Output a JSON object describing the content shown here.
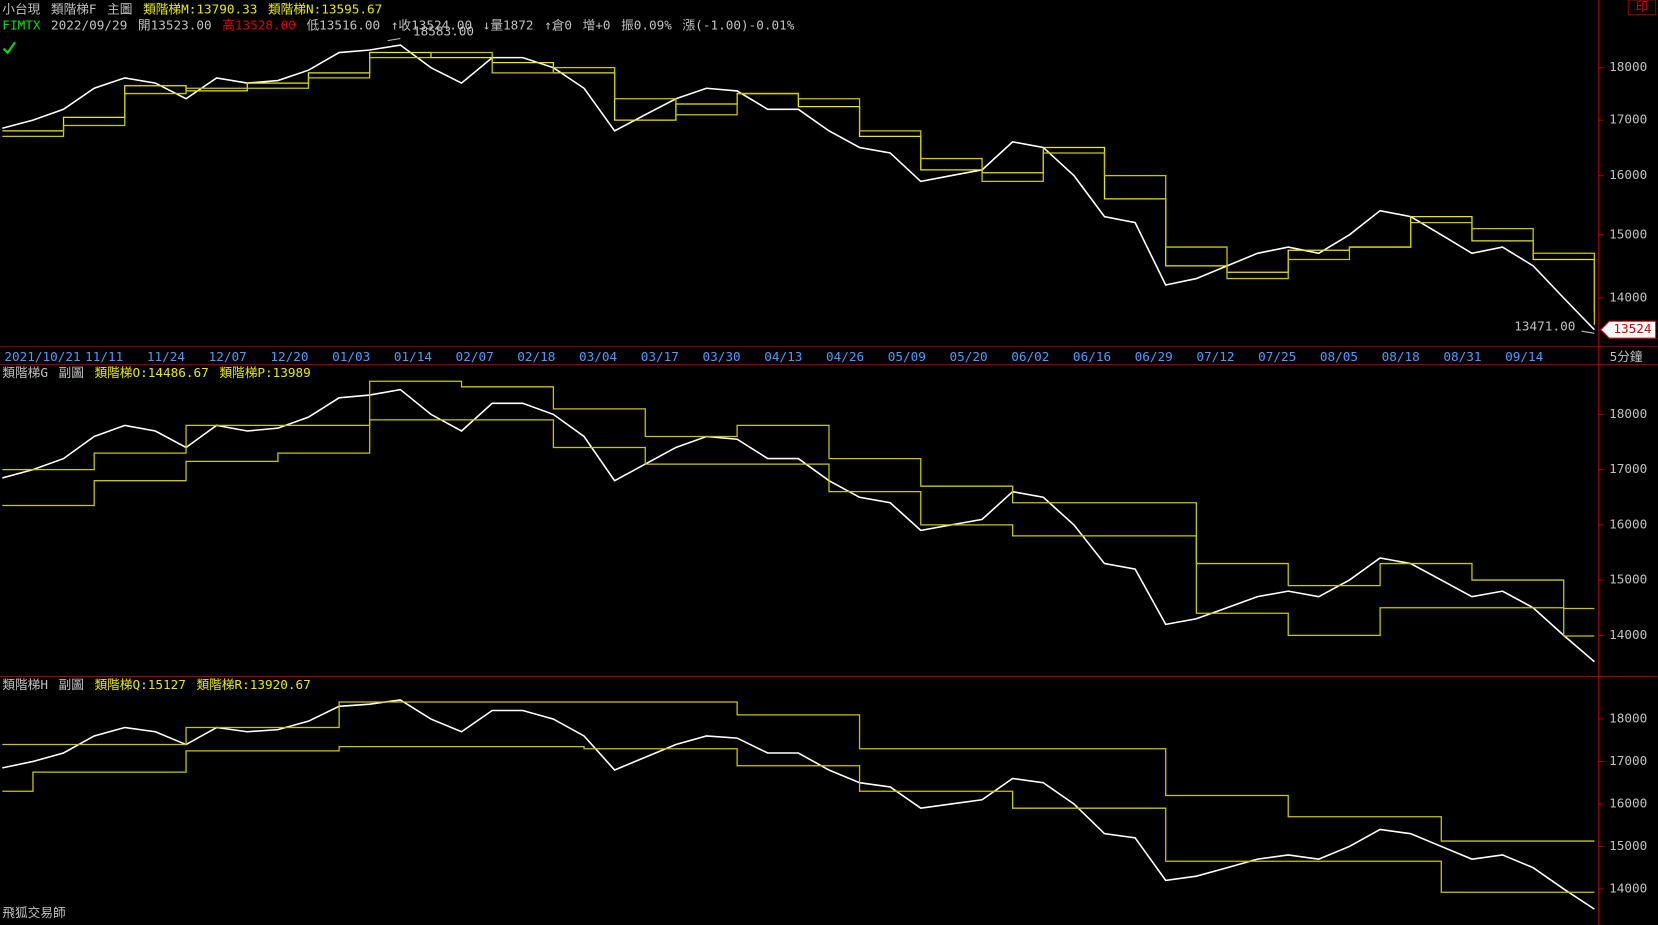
{
  "header": {
    "line1": [
      {
        "text": "小台現",
        "color": "#c0c0c0"
      },
      {
        "text": "類階梯F",
        "color": "#c0c0c0"
      },
      {
        "text": "主圖",
        "color": "#c0c0c0"
      },
      {
        "text": "類階梯M:13790.33",
        "color": "#e8e800"
      },
      {
        "text": "類階梯N:13595.67",
        "color": "#e8e800"
      }
    ],
    "line2": [
      {
        "text": "FIMTX",
        "color": "#00e000"
      },
      {
        "text": "2022/09/29",
        "color": "#c0c0c0"
      },
      {
        "text": "開13523.00",
        "color": "#c0c0c0"
      },
      {
        "text": "高13528.00",
        "color": "#e00000"
      },
      {
        "text": "低13516.00",
        "color": "#c0c0c0"
      },
      {
        "text": "↑收13524.00",
        "color": "#c0c0c0"
      },
      {
        "text": "↓量1872",
        "color": "#c0c0c0"
      },
      {
        "text": "↑倉0",
        "color": "#c0c0c0"
      },
      {
        "text": "增+0",
        "color": "#c0c0c0"
      },
      {
        "text": "振0.09%",
        "color": "#c0c0c0"
      },
      {
        "text": "漲(-1.00)-0.01%",
        "color": "#c0c0c0"
      }
    ]
  },
  "x_axis": {
    "categories": [
      "2021/10/21",
      "11/11",
      "11/24",
      "12/07",
      "12/20",
      "01/03",
      "01/14",
      "02/07",
      "02/18",
      "03/04",
      "03/17",
      "03/30",
      "04/13",
      "04/26",
      "05/09",
      "05/20",
      "06/02",
      "06/16",
      "06/29",
      "07/12",
      "07/25",
      "08/05",
      "08/18",
      "08/31",
      "09/14"
    ],
    "unit": "5分鐘"
  },
  "chart_data": [
    {
      "type": "line",
      "log_scale": true,
      "ylim": [
        13275,
        19380
      ],
      "yticks": [
        14000,
        15000,
        16000,
        17000,
        18000
      ],
      "annotations": [
        {
          "value": 18583,
          "label": "18583.00",
          "index": 13
        },
        {
          "value": 13471,
          "label": "13471.00",
          "index": 52
        }
      ],
      "price_tag": {
        "value": 13524,
        "label": "13524",
        "color": "#e00000"
      },
      "series": [
        {
          "color": "#ffffff",
          "values": [
            16850,
            17000,
            17200,
            17600,
            17800,
            17700,
            17400,
            17800,
            17700,
            17750,
            17950,
            18300,
            18350,
            18450,
            18000,
            17700,
            18200,
            18200,
            18000,
            17600,
            16800,
            17100,
            17400,
            17600,
            17550,
            17200,
            17200,
            16800,
            16500,
            16400,
            15900,
            16000,
            16100,
            16600,
            16500,
            16000,
            15300,
            15200,
            14200,
            14300,
            14500,
            14700,
            14800,
            14700,
            15000,
            15400,
            15300,
            15000,
            14700,
            14800,
            14500,
            14000,
            13524
          ]
        },
        {
          "color": "#e8e800",
          "step": true,
          "x": [
            0,
            2,
            4,
            6,
            8,
            10,
            12,
            14,
            16,
            18,
            20,
            22,
            24,
            26,
            28,
            30,
            32,
            34,
            36,
            38,
            40,
            42,
            44,
            46,
            48,
            50,
            52
          ],
          "values": [
            16800,
            17050,
            17650,
            17550,
            17700,
            17900,
            18300,
            18200,
            18100,
            17900,
            17000,
            17300,
            17500,
            17250,
            16700,
            16100,
            16050,
            16500,
            15600,
            14500,
            14400,
            14750,
            14800,
            15300,
            14900,
            14600,
            13790.33
          ]
        },
        {
          "color": "#c8c800",
          "step": true,
          "x": [
            0,
            2,
            4,
            6,
            8,
            10,
            12,
            14,
            16,
            18,
            20,
            22,
            24,
            26,
            28,
            30,
            32,
            34,
            36,
            38,
            40,
            42,
            44,
            46,
            48,
            50,
            52
          ],
          "values": [
            16700,
            16900,
            17500,
            17600,
            17600,
            17800,
            18200,
            18300,
            17900,
            18000,
            17400,
            17100,
            17500,
            17400,
            16800,
            16300,
            15900,
            16400,
            16000,
            14800,
            14300,
            14600,
            14800,
            15200,
            15100,
            14700,
            13595.67
          ]
        }
      ]
    },
    {
      "type": "line",
      "header": [
        {
          "text": "類階梯G",
          "color": "#c0c0c0"
        },
        {
          "text": "副圖",
          "color": "#c0c0c0"
        },
        {
          "text": "類階梯O:14486.67",
          "color": "#e8e800"
        },
        {
          "text": "類階梯P:13989",
          "color": "#e8e800"
        }
      ],
      "ylim": [
        13292,
        18899
      ],
      "yticks": [
        14000,
        15000,
        16000,
        17000,
        18000
      ],
      "series": [
        {
          "color": "#ffffff",
          "values": [
            16850,
            17000,
            17200,
            17600,
            17800,
            17700,
            17400,
            17800,
            17700,
            17750,
            17950,
            18300,
            18350,
            18450,
            18000,
            17700,
            18200,
            18200,
            18000,
            17600,
            16800,
            17100,
            17400,
            17600,
            17550,
            17200,
            17200,
            16800,
            16500,
            16400,
            15900,
            16000,
            16100,
            16600,
            16500,
            16000,
            15300,
            15200,
            14200,
            14300,
            14500,
            14700,
            14800,
            14700,
            15000,
            15400,
            15300,
            15000,
            14700,
            14800,
            14500,
            14000,
            13524
          ]
        },
        {
          "color": "#c8c800",
          "step": true,
          "x": [
            0,
            3,
            6,
            9,
            12,
            15,
            18,
            21,
            24,
            27,
            30,
            33,
            36,
            39,
            42,
            45,
            48,
            51,
            52
          ],
          "values": [
            17000,
            17300,
            17800,
            17800,
            18600,
            18500,
            18100,
            17600,
            17800,
            17200,
            16700,
            16400,
            16400,
            15300,
            14900,
            15300,
            15000,
            14486.67,
            14486.67
          ]
        },
        {
          "color": "#c8c800",
          "step": true,
          "x": [
            0,
            3,
            6,
            9,
            12,
            15,
            18,
            21,
            24,
            27,
            30,
            33,
            36,
            39,
            42,
            45,
            48,
            51,
            52
          ],
          "values": [
            16350,
            16800,
            17150,
            17300,
            17900,
            17900,
            17400,
            17100,
            17100,
            16600,
            16000,
            15800,
            15800,
            14400,
            14000,
            14500,
            14500,
            13989,
            13989
          ]
        }
      ]
    },
    {
      "type": "line",
      "header": [
        {
          "text": "類階梯H",
          "color": "#c0c0c0"
        },
        {
          "text": "副圖",
          "color": "#c0c0c0"
        },
        {
          "text": "類階梯Q:15127",
          "color": "#e8e800"
        },
        {
          "text": "類階梯R:13920.67",
          "color": "#e8e800"
        }
      ],
      "ylim": [
        13150,
        19000
      ],
      "yticks": [
        14000,
        15000,
        16000,
        17000,
        18000
      ],
      "series": [
        {
          "color": "#ffffff",
          "values": [
            16850,
            17000,
            17200,
            17600,
            17800,
            17700,
            17400,
            17800,
            17700,
            17750,
            17950,
            18300,
            18350,
            18450,
            18000,
            17700,
            18200,
            18200,
            18000,
            17600,
            16800,
            17100,
            17400,
            17600,
            17550,
            17200,
            17200,
            16800,
            16500,
            16400,
            15900,
            16000,
            16100,
            16600,
            16500,
            16000,
            15300,
            15200,
            14200,
            14300,
            14500,
            14700,
            14800,
            14700,
            15000,
            15400,
            15300,
            15000,
            14700,
            14800,
            14500,
            14000,
            13524
          ]
        },
        {
          "color": "#c8c800",
          "step": true,
          "x": [
            0,
            6,
            11,
            24,
            28,
            38,
            42,
            47,
            52
          ],
          "values": [
            17400,
            17800,
            18400,
            18100,
            17300,
            16200,
            15700,
            15127,
            15127
          ]
        },
        {
          "color": "#c8c800",
          "step": true,
          "x": [
            0,
            1,
            6,
            11,
            19,
            24,
            28,
            33,
            38,
            47,
            52
          ],
          "values": [
            16300,
            16750,
            17250,
            17350,
            17300,
            16900,
            16300,
            15900,
            14650,
            13920.67,
            13920.67
          ]
        }
      ]
    }
  ],
  "footer": "飛狐交易師",
  "print_button": "印"
}
